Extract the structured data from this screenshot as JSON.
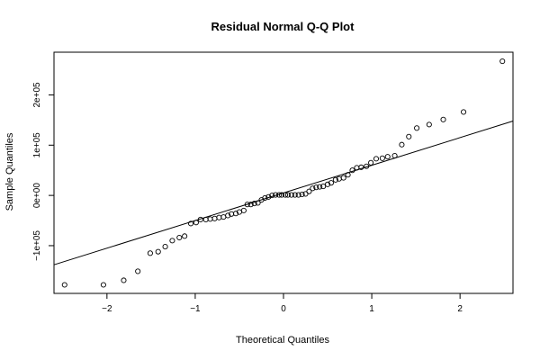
{
  "chart_data": {
    "type": "scatter",
    "title": "Residual Normal Q-Q Plot",
    "xlabel": "Theoretical Quantiles",
    "ylabel": "Sample Quantiles",
    "xlim": [
      -2.6,
      2.6
    ],
    "ylim": [
      -195000,
      285000
    ],
    "x_ticks": [
      -2,
      -1,
      0,
      1,
      2
    ],
    "x_tick_labels": [
      "−2",
      "−1",
      "0",
      "1",
      "2"
    ],
    "y_ticks": [
      -100000,
      0,
      100000,
      200000
    ],
    "y_tick_labels": [
      "−1e+05",
      "0e+00",
      "1e+05",
      "2e+05"
    ],
    "grid": false,
    "reference_line": {
      "intercept": 5000,
      "slope": 55000
    },
    "points": [
      {
        "x": -2.48,
        "y": -178000
      },
      {
        "x": -2.04,
        "y": -178000
      },
      {
        "x": -1.81,
        "y": -169000
      },
      {
        "x": -1.65,
        "y": -151000
      },
      {
        "x": -1.51,
        "y": -115000
      },
      {
        "x": -1.42,
        "y": -112000
      },
      {
        "x": -1.34,
        "y": -102000
      },
      {
        "x": -1.26,
        "y": -90000
      },
      {
        "x": -1.18,
        "y": -84000
      },
      {
        "x": -1.12,
        "y": -81000
      },
      {
        "x": -1.05,
        "y": -56000
      },
      {
        "x": -0.99,
        "y": -54000
      },
      {
        "x": -0.94,
        "y": -48000
      },
      {
        "x": -0.88,
        "y": -48000
      },
      {
        "x": -0.83,
        "y": -47000
      },
      {
        "x": -0.78,
        "y": -46000
      },
      {
        "x": -0.73,
        "y": -44000
      },
      {
        "x": -0.68,
        "y": -43000
      },
      {
        "x": -0.63,
        "y": -40000
      },
      {
        "x": -0.59,
        "y": -37000
      },
      {
        "x": -0.54,
        "y": -36000
      },
      {
        "x": -0.5,
        "y": -33000
      },
      {
        "x": -0.45,
        "y": -30000
      },
      {
        "x": -0.41,
        "y": -18000
      },
      {
        "x": -0.37,
        "y": -18000
      },
      {
        "x": -0.33,
        "y": -16000
      },
      {
        "x": -0.29,
        "y": -15000
      },
      {
        "x": -0.25,
        "y": -9000
      },
      {
        "x": -0.21,
        "y": -5000
      },
      {
        "x": -0.17,
        "y": -3000
      },
      {
        "x": -0.13,
        "y": 0
      },
      {
        "x": -0.09,
        "y": 1000
      },
      {
        "x": -0.05,
        "y": 1000
      },
      {
        "x": -0.02,
        "y": 1000
      },
      {
        "x": 0.02,
        "y": 1000
      },
      {
        "x": 0.05,
        "y": 1000
      },
      {
        "x": 0.09,
        "y": 1000
      },
      {
        "x": 0.13,
        "y": 1000
      },
      {
        "x": 0.17,
        "y": 1000
      },
      {
        "x": 0.21,
        "y": 2000
      },
      {
        "x": 0.25,
        "y": 3000
      },
      {
        "x": 0.29,
        "y": 8000
      },
      {
        "x": 0.33,
        "y": 14000
      },
      {
        "x": 0.37,
        "y": 16000
      },
      {
        "x": 0.41,
        "y": 17000
      },
      {
        "x": 0.45,
        "y": 18000
      },
      {
        "x": 0.5,
        "y": 22000
      },
      {
        "x": 0.54,
        "y": 25000
      },
      {
        "x": 0.59,
        "y": 31000
      },
      {
        "x": 0.63,
        "y": 33000
      },
      {
        "x": 0.68,
        "y": 35000
      },
      {
        "x": 0.73,
        "y": 41000
      },
      {
        "x": 0.78,
        "y": 50000
      },
      {
        "x": 0.83,
        "y": 55000
      },
      {
        "x": 0.88,
        "y": 56000
      },
      {
        "x": 0.94,
        "y": 58000
      },
      {
        "x": 0.99,
        "y": 65000
      },
      {
        "x": 1.05,
        "y": 73000
      },
      {
        "x": 1.12,
        "y": 74000
      },
      {
        "x": 1.18,
        "y": 77000
      },
      {
        "x": 1.26,
        "y": 79000
      },
      {
        "x": 1.34,
        "y": 101000
      },
      {
        "x": 1.42,
        "y": 117000
      },
      {
        "x": 1.51,
        "y": 134000
      },
      {
        "x": 1.65,
        "y": 141000
      },
      {
        "x": 1.81,
        "y": 151000
      },
      {
        "x": 2.04,
        "y": 166000
      },
      {
        "x": 2.48,
        "y": 267000
      }
    ]
  }
}
